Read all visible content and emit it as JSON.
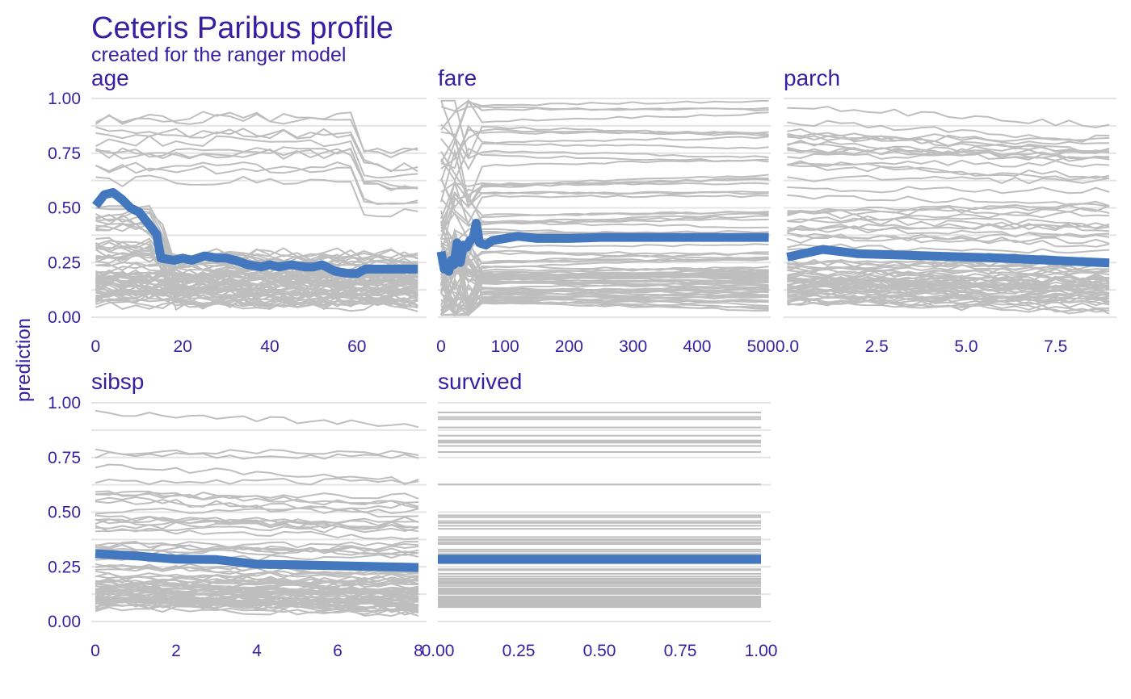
{
  "title": "Ceteris Paribus profile",
  "subtitle": "created for the ranger model",
  "ylabel": "prediction",
  "colors": {
    "text": "#371ea3",
    "profile": "#bebebe",
    "average": "#4378bf",
    "grid": "#e4e4e4"
  },
  "chart_data": {
    "type": "line",
    "layout": "facets",
    "grid": true,
    "ylim": [
      0,
      1
    ],
    "y_ticks": [
      "0.00",
      "0.25",
      "0.50",
      "0.75",
      "1.00"
    ],
    "y_tick_values": [
      0,
      0.25,
      0.5,
      0.75,
      1.0
    ],
    "panels": [
      {
        "variable": "age",
        "xlim": [
          -1,
          76
        ],
        "x_ticks": [
          0,
          20,
          40,
          60
        ],
        "x_tick_labels": [
          "0",
          "20",
          "40",
          "60"
        ],
        "average": {
          "x": [
            0,
            2,
            4,
            6,
            8,
            10,
            12,
            14,
            15,
            18,
            20,
            22,
            25,
            28,
            30,
            32,
            35,
            38,
            40,
            42,
            45,
            48,
            50,
            52,
            55,
            58,
            60,
            62,
            65,
            70,
            74
          ],
          "y": [
            0.51,
            0.56,
            0.57,
            0.54,
            0.5,
            0.48,
            0.43,
            0.38,
            0.27,
            0.26,
            0.27,
            0.26,
            0.28,
            0.27,
            0.27,
            0.26,
            0.24,
            0.23,
            0.24,
            0.23,
            0.24,
            0.23,
            0.23,
            0.24,
            0.21,
            0.2,
            0.2,
            0.22,
            0.22,
            0.22,
            0.22
          ]
        }
      },
      {
        "variable": "fare",
        "xlim": [
          -5,
          515
        ],
        "x_ticks": [
          0,
          100,
          200,
          300,
          400,
          500
        ],
        "x_tick_labels": [
          "0",
          "100",
          "200",
          "300",
          "400",
          "500"
        ],
        "average": {
          "x": [
            0,
            5,
            8,
            12,
            16,
            20,
            25,
            30,
            35,
            40,
            45,
            50,
            55,
            60,
            70,
            80,
            100,
            120,
            150,
            200,
            250,
            300,
            400,
            512
          ],
          "y": [
            0.3,
            0.22,
            0.24,
            0.21,
            0.26,
            0.24,
            0.34,
            0.25,
            0.33,
            0.32,
            0.35,
            0.36,
            0.43,
            0.34,
            0.33,
            0.35,
            0.36,
            0.37,
            0.36,
            0.36,
            0.365,
            0.365,
            0.365,
            0.365
          ]
        }
      },
      {
        "variable": "parch",
        "xlim": [
          -0.1,
          9.2
        ],
        "x_ticks": [
          0,
          2.5,
          5,
          7.5
        ],
        "x_tick_labels": [
          "0.0",
          "2.5",
          "5.0",
          "7.5"
        ],
        "average": {
          "x": [
            0,
            1,
            2,
            3,
            4,
            5,
            6,
            9
          ],
          "y": [
            0.275,
            0.31,
            0.29,
            0.285,
            0.28,
            0.275,
            0.27,
            0.248
          ]
        }
      },
      {
        "variable": "sibsp",
        "xlim": [
          -0.1,
          8.2
        ],
        "x_ticks": [
          0,
          2,
          4,
          6,
          8
        ],
        "x_tick_labels": [
          "0",
          "2",
          "4",
          "6",
          "8"
        ],
        "average": {
          "x": [
            0,
            1,
            2,
            3,
            4,
            5,
            8
          ],
          "y": [
            0.31,
            0.3,
            0.285,
            0.283,
            0.262,
            0.259,
            0.247
          ]
        }
      },
      {
        "variable": "survived",
        "xlim": [
          0,
          1.03
        ],
        "x_ticks": [
          0,
          0.25,
          0.5,
          0.75,
          1
        ],
        "x_tick_labels": [
          "0.00",
          "0.25",
          "0.50",
          "0.75",
          "1.00"
        ],
        "average": {
          "x": [
            0,
            1
          ],
          "y": [
            0.285,
            0.285
          ]
        }
      }
    ]
  }
}
